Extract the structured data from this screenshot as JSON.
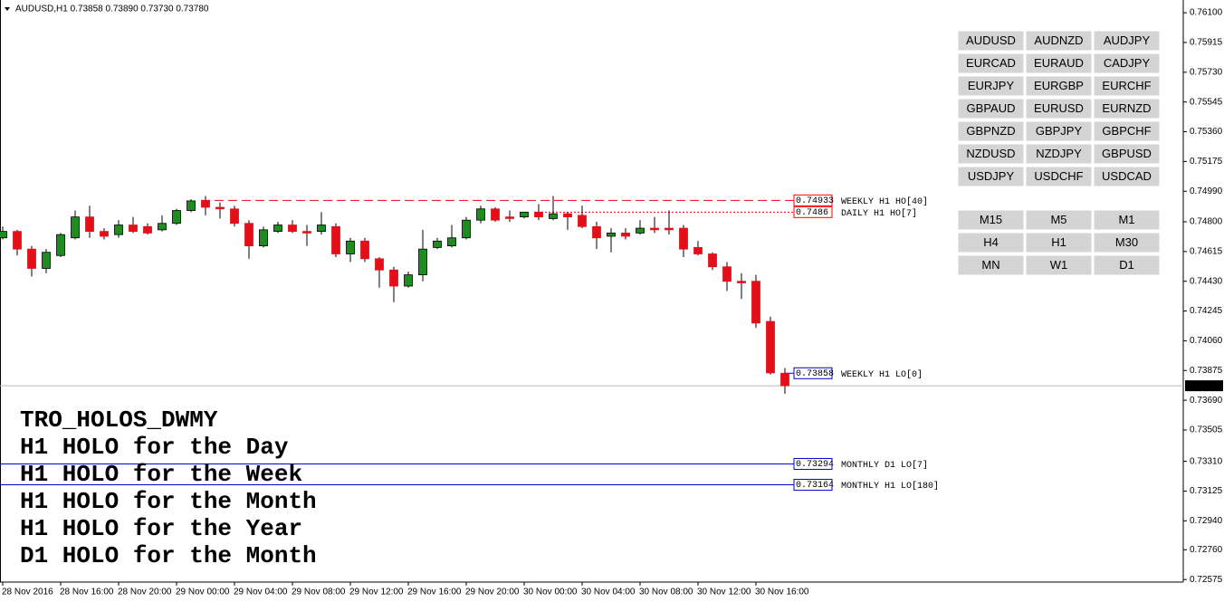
{
  "chart_data": {
    "type": "candlestick",
    "header": "AUDUSD,H1  0.73858 0.73890 0.73730 0.73780",
    "categories": [
      "28 Nov 2016",
      null,
      null,
      null,
      "28 Nov 16:00",
      null,
      null,
      null,
      "28 Nov 20:00",
      null,
      null,
      null,
      "29 Nov 00:00",
      null,
      null,
      null,
      "29 Nov 04:00",
      null,
      null,
      null,
      "29 Nov 08:00",
      null,
      null,
      null,
      "29 Nov 12:00",
      null,
      null,
      null,
      "29 Nov 16:00",
      null,
      null,
      null,
      "29 Nov 20:00",
      null,
      null,
      null,
      "30 Nov 00:00",
      null,
      null,
      null,
      "30 Nov 04:00",
      null,
      null,
      null,
      "30 Nov 08:00",
      null,
      null,
      null,
      "30 Nov 12:00",
      null,
      null,
      null,
      "30 Nov 16:00",
      null,
      null
    ],
    "open": [
      0.747,
      0.7474,
      0.7463,
      0.7451,
      0.7459,
      0.747,
      0.7483,
      0.7474,
      0.7472,
      0.7478,
      0.7477,
      0.7475,
      0.7479,
      0.7487,
      0.7493,
      0.7489,
      0.7488,
      0.7479,
      0.7465,
      0.7474,
      0.7478,
      0.7474,
      0.7474,
      0.7477,
      0.746,
      0.7468,
      0.7457,
      0.745,
      0.744,
      0.7447,
      0.7464,
      0.7465,
      0.747,
      0.7481,
      0.7488,
      0.7483,
      0.7483,
      0.7486,
      0.7482,
      0.7485,
      0.7484,
      0.7477,
      0.7471,
      0.7473,
      0.7473,
      0.7476,
      0.7476,
      0.7476,
      0.7464,
      0.746,
      0.7452,
      0.7443,
      0.7443,
      0.7418,
      0.73858
    ],
    "high": [
      0.7477,
      0.7475,
      0.7465,
      0.7463,
      0.7473,
      0.7487,
      0.749,
      0.7476,
      0.7481,
      0.7483,
      0.7479,
      0.7484,
      0.7488,
      0.7494,
      0.7496,
      0.7492,
      0.749,
      0.7481,
      0.7477,
      0.748,
      0.7481,
      0.7478,
      0.7486,
      0.7479,
      0.747,
      0.747,
      0.7458,
      0.7452,
      0.7449,
      0.7475,
      0.747,
      0.7478,
      0.7483,
      0.749,
      0.7489,
      0.7487,
      0.7486,
      0.7491,
      0.7496,
      0.7486,
      0.749,
      0.748,
      0.7476,
      0.7476,
      0.7481,
      0.7483,
      0.7487,
      0.7478,
      0.7468,
      0.7461,
      0.7455,
      0.7448,
      0.7447,
      0.7421,
      0.7389
    ],
    "low": [
      0.7469,
      0.7459,
      0.7446,
      0.7448,
      0.7458,
      0.7469,
      0.747,
      0.7469,
      0.747,
      0.7473,
      0.7472,
      0.7474,
      0.7478,
      0.7486,
      0.7484,
      0.7482,
      0.7477,
      0.7457,
      0.7464,
      0.7473,
      0.7473,
      0.7465,
      0.7472,
      0.7458,
      0.7455,
      0.7455,
      0.7439,
      0.743,
      0.7439,
      0.7443,
      0.7463,
      0.7464,
      0.7469,
      0.7479,
      0.748,
      0.748,
      0.7482,
      0.7481,
      0.7481,
      0.7475,
      0.7476,
      0.7463,
      0.7461,
      0.7469,
      0.7472,
      0.7473,
      0.7472,
      0.7458,
      0.7459,
      0.745,
      0.7437,
      0.7432,
      0.7414,
      0.7385,
      0.7373
    ],
    "close": [
      0.7474,
      0.7463,
      0.7451,
      0.7461,
      0.7472,
      0.7483,
      0.7474,
      0.7471,
      0.7478,
      0.7474,
      0.7473,
      0.7479,
      0.7487,
      0.7493,
      0.7489,
      0.7488,
      0.7479,
      0.7465,
      0.7475,
      0.7478,
      0.7474,
      0.7473,
      0.7478,
      0.746,
      0.7468,
      0.7457,
      0.745,
      0.744,
      0.7447,
      0.7463,
      0.7468,
      0.747,
      0.7481,
      0.7488,
      0.7481,
      0.7482,
      0.7486,
      0.7483,
      0.7485,
      0.7483,
      0.7477,
      0.747,
      0.7473,
      0.7471,
      0.7476,
      0.7475,
      0.7475,
      0.7463,
      0.746,
      0.7452,
      0.7443,
      0.7442,
      0.7417,
      0.7386,
      0.7378
    ],
    "up_color": "#1e8c1e",
    "down_color": "#e3101a",
    "ylim": [
      0.72559,
      0.76168
    ],
    "yticks": [
      {
        "value": 0.761,
        "label": "0.76100"
      },
      {
        "value": 0.75915,
        "label": "0.75915"
      },
      {
        "value": 0.7573,
        "label": "0.75730"
      },
      {
        "value": 0.75545,
        "label": "0.75545"
      },
      {
        "value": 0.7536,
        "label": "0.75360"
      },
      {
        "value": 0.75175,
        "label": "0.75175"
      },
      {
        "value": 0.7499,
        "label": "0.74990"
      },
      {
        "value": 0.748,
        "label": "0.74800"
      },
      {
        "value": 0.74615,
        "label": "0.74615"
      },
      {
        "value": 0.7443,
        "label": "0.74430"
      },
      {
        "value": 0.74245,
        "label": "0.74245"
      },
      {
        "value": 0.7406,
        "label": "0.74060"
      },
      {
        "value": 0.73875,
        "label": "0.73875"
      },
      {
        "value": 0.7369,
        "label": "0.73690"
      },
      {
        "value": 0.73505,
        "label": "0.73505"
      },
      {
        "value": 0.7331,
        "label": "0.73310"
      },
      {
        "value": 0.73125,
        "label": "0.73125"
      },
      {
        "value": 0.7294,
        "label": "0.72940"
      },
      {
        "value": 0.7276,
        "label": "0.72760"
      },
      {
        "value": 0.72575,
        "label": "0.72575"
      }
    ],
    "current_price": {
      "value": 0.7378,
      "label": "0.73780"
    },
    "levels": [
      {
        "name": "WEEKLY H1 HO[40]",
        "value": 0.74933,
        "color": "#ff0000",
        "style": "dashed"
      },
      {
        "name": "DAILY H1 HO[7]",
        "value": 0.7486,
        "color": "#ff0000",
        "style": "dotted"
      },
      {
        "name": "WEEKLY H1 LO[0]",
        "value": 0.73858,
        "color": "#0000cc",
        "style": "short"
      },
      {
        "name": "MONTHLY D1 LO[7]",
        "value": 0.73294,
        "color": "#0000cc",
        "style": "solid"
      },
      {
        "name": "MONTHLY H1 LO[180]",
        "value": 0.73164,
        "color": "#0000cc",
        "style": "solid"
      }
    ],
    "overlay_title": "TRO_HOLOS_DWMY",
    "overlay_lines": [
      "H1 HOLO for the Day",
      "H1 HOLO for the Week",
      "H1 HOLO for the Month",
      "H1 HOLO for the Year",
      "D1 HOLO for the Month"
    ],
    "symbols": [
      "AUDUSD",
      "AUDNZD",
      "AUDJPY",
      "EURCAD",
      "EURAUD",
      "CADJPY",
      "EURJPY",
      "EURGBP",
      "EURCHF",
      "GBPAUD",
      "EURUSD",
      "EURNZD",
      "GBPNZD",
      "GBPJPY",
      "GBPCHF",
      "NZDUSD",
      "NZDJPY",
      "GBPUSD",
      "USDJPY",
      "USDCHF",
      "USDCAD"
    ],
    "selected_symbol": 0,
    "timeframes": [
      "M15",
      "M5",
      "M1",
      "H4",
      "H1",
      "M30",
      "MN",
      "W1",
      "D1"
    ],
    "selected_timeframe": 4
  }
}
